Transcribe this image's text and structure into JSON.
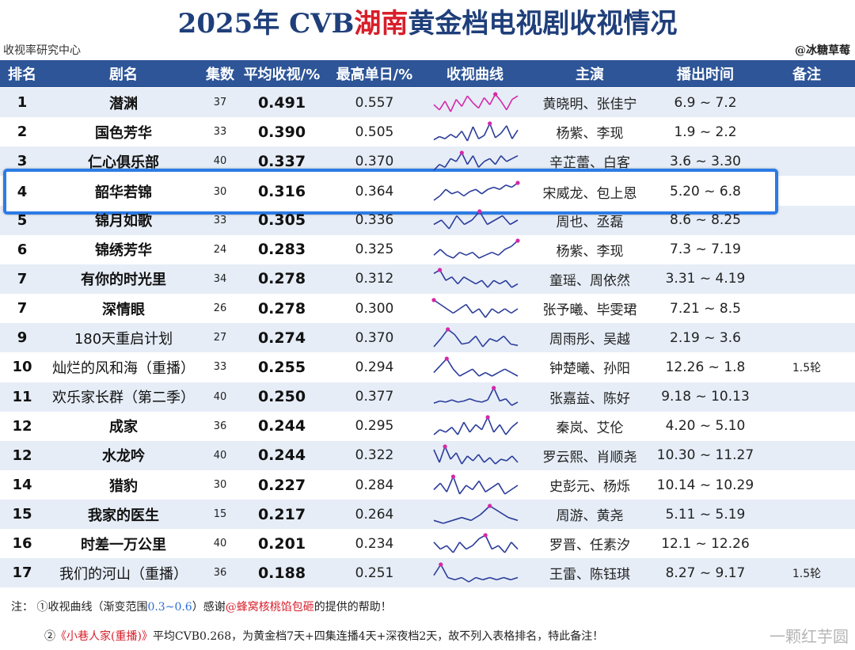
{
  "title": {
    "prefix": "2025年 CVB",
    "highlight": "湖南",
    "suffix": "黄金档电视剧收视情况"
  },
  "source_left": "收视率研究中心",
  "source_right": "@冰糖草莓",
  "headers": [
    "排名",
    "剧名",
    "集数",
    "平均收视/%",
    "最高单日/%",
    "收视曲线",
    "主演",
    "播出时间",
    "备注"
  ],
  "colors": {
    "header_bg": "#2d5597",
    "row_alt": "#e6edf7",
    "title": "#1f3f7a",
    "title_highlight": "#d81e2a",
    "highlight_box": "#2b7be6",
    "curve": "#2a3c9a",
    "curve_peak": "#d428a8"
  },
  "chart_data": {
    "type": "table",
    "columns": [
      "排名",
      "剧名",
      "集数",
      "平均收视/%",
      "最高单日/%",
      "收视曲线",
      "主演",
      "播出时间",
      "备注"
    ],
    "rows": [
      {
        "rank": "1",
        "name": "潜渊",
        "episodes": "37",
        "avg": "0.491",
        "max": "0.557",
        "actors": "黄晓明、张佳宁",
        "period": "6.9 ~ 7.2",
        "note": "",
        "curve": [
          0.5,
          0.47,
          0.52,
          0.46,
          0.53,
          0.49,
          0.55,
          0.51,
          0.48,
          0.54,
          0.5,
          0.56,
          0.52,
          0.47,
          0.53,
          0.55
        ]
      },
      {
        "rank": "2",
        "name": "国色芳华",
        "episodes": "33",
        "avg": "0.390",
        "max": "0.505",
        "actors": "杨紫、李现",
        "period": "1.9 ~ 2.2",
        "note": "",
        "curve": [
          0.35,
          0.38,
          0.36,
          0.4,
          0.37,
          0.43,
          0.34,
          0.47,
          0.36,
          0.39,
          0.5,
          0.37,
          0.41,
          0.48,
          0.36,
          0.44
        ]
      },
      {
        "rank": "3",
        "name": "仁心俱乐部",
        "episodes": "40",
        "avg": "0.337",
        "max": "0.370",
        "actors": "辛芷蕾、白客",
        "period": "3.6 ~ 3.30",
        "note": "",
        "curve": [
          0.31,
          0.33,
          0.32,
          0.35,
          0.34,
          0.37,
          0.33,
          0.36,
          0.32,
          0.34,
          0.35,
          0.33,
          0.36,
          0.34,
          0.35,
          0.36
        ]
      },
      {
        "rank": "4",
        "name": "韶华若锦",
        "episodes": "30",
        "avg": "0.316",
        "max": "0.364",
        "actors": "宋威龙、包上恩",
        "period": "5.20 ~ 6.8",
        "note": "",
        "curve": [
          0.28,
          0.3,
          0.33,
          0.31,
          0.32,
          0.3,
          0.32,
          0.33,
          0.31,
          0.33,
          0.34,
          0.33,
          0.35,
          0.34,
          0.36
        ]
      },
      {
        "rank": "5",
        "name": "锦月如歌",
        "episodes": "33",
        "avg": "0.305",
        "max": "0.336",
        "actors": "周也、丞磊",
        "period": "8.6 ~ 8.25",
        "note": "",
        "curve": [
          0.3,
          0.31,
          0.29,
          0.32,
          0.3,
          0.31,
          0.33,
          0.3,
          0.31,
          0.32,
          0.3,
          0.31
        ]
      },
      {
        "rank": "6",
        "name": "锦绣芳华",
        "episodes": "24",
        "avg": "0.283",
        "max": "0.325",
        "actors": "杨紫、李现",
        "period": "7.3 ~ 7.19",
        "note": "",
        "curve": [
          0.27,
          0.29,
          0.27,
          0.26,
          0.28,
          0.27,
          0.28,
          0.26,
          0.27,
          0.28,
          0.27,
          0.29,
          0.3,
          0.32
        ]
      },
      {
        "rank": "7",
        "name": "有你的时光里",
        "episodes": "34",
        "avg": "0.278",
        "max": "0.312",
        "actors": "童瑶、周依然",
        "period": "3.31 ~ 4.19",
        "note": "",
        "curve": [
          0.3,
          0.31,
          0.28,
          0.29,
          0.27,
          0.29,
          0.28,
          0.27,
          0.28,
          0.26,
          0.28,
          0.27,
          0.28,
          0.26,
          0.27
        ]
      },
      {
        "rank": "7",
        "name": "深情眼",
        "episodes": "26",
        "avg": "0.278",
        "max": "0.300",
        "actors": "张予曦、毕雯珺",
        "period": "7.21 ~ 8.5",
        "note": "",
        "curve": [
          0.3,
          0.29,
          0.28,
          0.27,
          0.28,
          0.29,
          0.27,
          0.28,
          0.26,
          0.28,
          0.27,
          0.28,
          0.27,
          0.28
        ]
      },
      {
        "rank": "9",
        "name": "180天重启计划",
        "episodes": "27",
        "avg": "0.274",
        "max": "0.370",
        "actors": "周雨彤、吴越",
        "period": "2.19 ~ 3.6",
        "note": "",
        "curve": [
          0.24,
          0.3,
          0.37,
          0.33,
          0.26,
          0.27,
          0.32,
          0.24,
          0.3,
          0.28,
          0.32,
          0.26,
          0.25
        ]
      },
      {
        "rank": "10",
        "name": "灿烂的风和海（重播）",
        "episodes": "33",
        "avg": "0.255",
        "max": "0.294",
        "actors": "钟楚曦、孙阳",
        "period": "12.26 ~ 1.8",
        "note": "1.5轮",
        "curve": [
          0.25,
          0.27,
          0.29,
          0.26,
          0.24,
          0.25,
          0.26,
          0.24,
          0.25,
          0.24,
          0.25,
          0.26,
          0.25,
          0.24
        ]
      },
      {
        "rank": "11",
        "name": "欢乐家长群（第二季）",
        "episodes": "40",
        "avg": "0.250",
        "max": "0.377",
        "actors": "张嘉益、陈好",
        "period": "9.18 ~ 10.13",
        "note": "",
        "curve": [
          0.24,
          0.26,
          0.25,
          0.27,
          0.25,
          0.26,
          0.28,
          0.26,
          0.25,
          0.27,
          0.38,
          0.26,
          0.28,
          0.22,
          0.25
        ]
      },
      {
        "rank": "12",
        "name": "成家",
        "episodes": "36",
        "avg": "0.244",
        "max": "0.295",
        "actors": "秦岚、艾伦",
        "period": "4.20 ~ 5.10",
        "note": "",
        "curve": [
          0.22,
          0.24,
          0.23,
          0.25,
          0.22,
          0.27,
          0.23,
          0.26,
          0.24,
          0.29,
          0.23,
          0.26,
          0.22,
          0.25,
          0.27
        ]
      },
      {
        "rank": "12",
        "name": "水龙吟",
        "episodes": "40",
        "avg": "0.244",
        "max": "0.322",
        "actors": "罗云熙、肖顺尧",
        "period": "10.30 ~ 11.27",
        "note": "",
        "curve": [
          0.3,
          0.22,
          0.32,
          0.24,
          0.28,
          0.21,
          0.26,
          0.23,
          0.27,
          0.22,
          0.25,
          0.21,
          0.24,
          0.23,
          0.26,
          0.22
        ]
      },
      {
        "rank": "14",
        "name": "猎豹",
        "episodes": "30",
        "avg": "0.227",
        "max": "0.284",
        "actors": "史彭元、杨烁",
        "period": "10.14 ~ 10.29",
        "note": "",
        "curve": [
          0.22,
          0.25,
          0.21,
          0.28,
          0.2,
          0.24,
          0.22,
          0.26,
          0.21,
          0.23,
          0.25,
          0.2,
          0.22,
          0.24
        ]
      },
      {
        "rank": "15",
        "name": "我家的医生",
        "episodes": "15",
        "avg": "0.217",
        "max": "0.264",
        "actors": "周游、黄尧",
        "period": "5.11 ~ 5.19",
        "note": "",
        "curve": [
          0.21,
          0.2,
          0.21,
          0.22,
          0.21,
          0.23,
          0.26,
          0.24,
          0.22,
          0.21
        ]
      },
      {
        "rank": "16",
        "name": "时差一万公里",
        "episodes": "40",
        "avg": "0.201",
        "max": "0.234",
        "actors": "罗晋、任素汐",
        "period": "12.1 ~ 12.26",
        "note": "",
        "curve": [
          0.21,
          0.19,
          0.2,
          0.18,
          0.21,
          0.19,
          0.2,
          0.22,
          0.23,
          0.19,
          0.2,
          0.18,
          0.21,
          0.19
        ]
      },
      {
        "rank": "17",
        "name": "我们的河山（重播）",
        "episodes": "36",
        "avg": "0.188",
        "max": "0.251",
        "actors": "王雷、陈钰琪",
        "period": "8.27 ~ 9.17",
        "note": "1.5轮",
        "curve": [
          0.2,
          0.25,
          0.19,
          0.18,
          0.19,
          0.17,
          0.19,
          0.18,
          0.19,
          0.18,
          0.19,
          0.18,
          0.19
        ]
      }
    ]
  },
  "notes": {
    "line1": {
      "a": "注：  ①收视曲线（渐变范围",
      "range": "0.3~0.6",
      "b": "）感谢",
      "at": "@蜂窝核桃馅包砸",
      "c": "的提供的帮助！"
    },
    "line2": {
      "a": "②",
      "drama": "《小巷人家(重播)》",
      "b": "平均CVB0.268，为黄金档7天+四集连播4天+深夜档2天，故不列入表格排名，特此备注！"
    }
  },
  "watermark": "一颗红芋圆"
}
